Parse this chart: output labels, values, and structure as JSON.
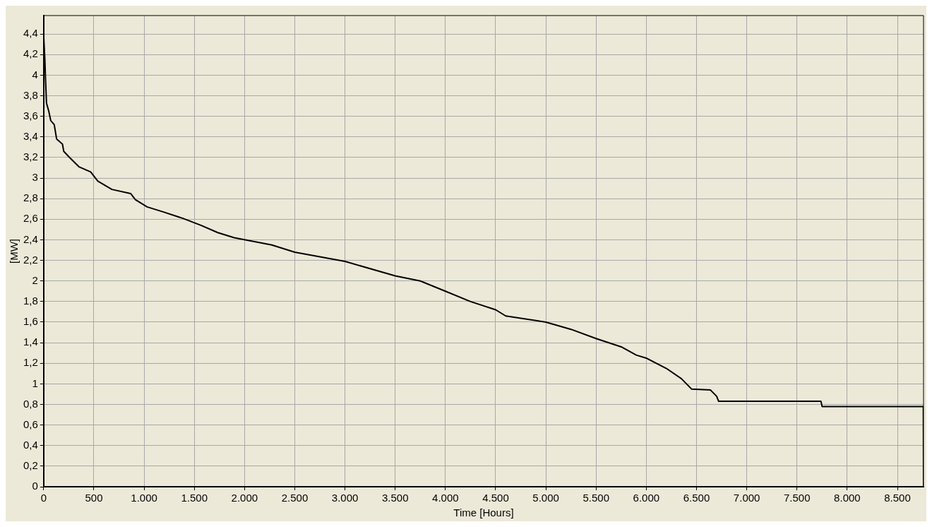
{
  "chart_data": {
    "type": "line",
    "xlabel": "Time [Hours]",
    "ylabel": "[MW]",
    "grid": true,
    "marker": "none",
    "line_style": "solid",
    "legend": false,
    "xlim": [
      0,
      8760
    ],
    "ylim": [
      0,
      4.58
    ],
    "xticks": [
      0,
      500,
      {
        "value": 1000,
        "label": "1.000"
      },
      {
        "value": 1500,
        "label": "1.500"
      },
      {
        "value": 2000,
        "label": "2.000"
      },
      {
        "value": 2500,
        "label": "2.500"
      },
      {
        "value": 3000,
        "label": "3.000"
      },
      {
        "value": 3500,
        "label": "3.500"
      },
      {
        "value": 4000,
        "label": "4.000"
      },
      {
        "value": 4500,
        "label": "4.500"
      },
      {
        "value": 5000,
        "label": "5.000"
      },
      {
        "value": 5500,
        "label": "5.500"
      },
      {
        "value": 6000,
        "label": "6.000"
      },
      {
        "value": 6500,
        "label": "6.500"
      },
      {
        "value": 7000,
        "label": "7.000"
      },
      {
        "value": 7500,
        "label": "7.500"
      },
      {
        "value": 8000,
        "label": "8.000"
      },
      {
        "value": 8500,
        "label": "8.500"
      }
    ],
    "yticks": [
      0,
      {
        "value": 0.2,
        "label": "0,2"
      },
      {
        "value": 0.4,
        "label": "0,4"
      },
      {
        "value": 0.6,
        "label": "0,6"
      },
      {
        "value": 0.8,
        "label": "0,8"
      },
      1,
      {
        "value": 1.2,
        "label": "1,2"
      },
      {
        "value": 1.4,
        "label": "1,4"
      },
      {
        "value": 1.6,
        "label": "1,6"
      },
      {
        "value": 1.8,
        "label": "1,8"
      },
      2,
      {
        "value": 2.2,
        "label": "2,2"
      },
      {
        "value": 2.4,
        "label": "2,4"
      },
      {
        "value": 2.6,
        "label": "2,6"
      },
      {
        "value": 2.8,
        "label": "2,8"
      },
      3,
      {
        "value": 3.2,
        "label": "3,2"
      },
      {
        "value": 3.4,
        "label": "3,4"
      },
      {
        "value": 3.6,
        "label": "3,6"
      },
      {
        "value": 3.8,
        "label": "3,8"
      },
      4,
      {
        "value": 4.2,
        "label": "4,2"
      },
      {
        "value": 4.4,
        "label": "4,4"
      }
    ],
    "series": [
      {
        "color": "#000000",
        "x": [
          0,
          12,
          19,
          28,
          51,
          70,
          105,
          129,
          187,
          200,
          258,
          351,
          468,
          539,
          679,
          866,
          913,
          1030,
          1194,
          1382,
          1569,
          1733,
          1897,
          2271,
          2500,
          3000,
          3500,
          3750,
          4000,
          4250,
          4500,
          4600,
          5000,
          5250,
          5500,
          5750,
          5900,
          6000,
          6200,
          6350,
          6450,
          6639,
          6700,
          6720,
          7739,
          7750,
          8758,
          8760
        ],
        "values": [
          4.38,
          4.15,
          3.95,
          3.73,
          3.65,
          3.56,
          3.52,
          3.38,
          3.33,
          3.26,
          3.2,
          3.11,
          3.06,
          2.97,
          2.89,
          2.85,
          2.79,
          2.72,
          2.67,
          2.61,
          2.54,
          2.47,
          2.42,
          2.35,
          2.28,
          2.19,
          2.05,
          2.0,
          1.9,
          1.8,
          1.72,
          1.66,
          1.6,
          1.53,
          1.44,
          1.36,
          1.28,
          1.25,
          1.15,
          1.05,
          0.95,
          0.94,
          0.88,
          0.83,
          0.83,
          0.78,
          0.78,
          0
        ]
      }
    ]
  }
}
